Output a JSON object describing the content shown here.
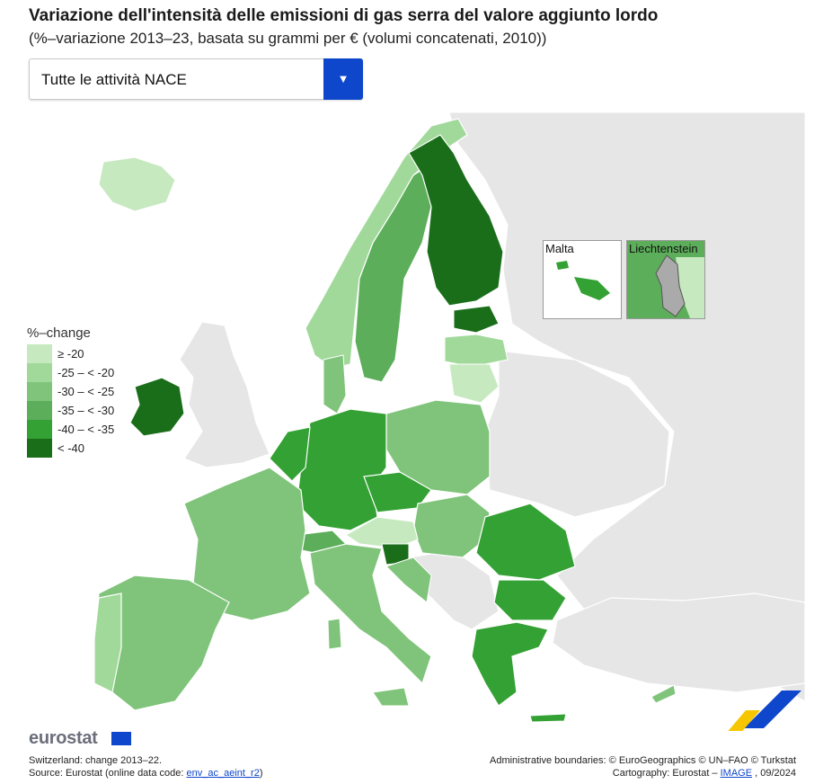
{
  "title": "Variazione dell'intensità delle emissioni di gas serra del valore aggiunto lordo",
  "subtitle": "(%–variazione 2013–23, basata su grammi per € (volumi concatenati, 2010))",
  "dropdown": {
    "value": "Tutte le attività NACE",
    "arrow": "▼"
  },
  "colors": {
    "c1": "#c7e9c0",
    "c2": "#a1d99b",
    "c3": "#7fc47a",
    "c4": "#5cae5a",
    "c5": "#33a133",
    "c6": "#1a6e1a",
    "nodata": "#e6e6e6",
    "sea": "#ffffff",
    "accent": "#0e47cb"
  },
  "legend": {
    "title": "%–change",
    "classes": [
      {
        "label": "≥ -20",
        "color": "#c7e9c0"
      },
      {
        "label": "-25 – < -20",
        "color": "#a1d99b"
      },
      {
        "label": "-30 – < -25",
        "color": "#7fc47a"
      },
      {
        "label": "-35 – < -30",
        "color": "#5cae5a"
      },
      {
        "label": "-40 – < -35",
        "color": "#33a133"
      },
      {
        "label": "< -40",
        "color": "#1a6e1a"
      }
    ]
  },
  "insets": {
    "malta": "Malta",
    "liechtenstein": "Liechtenstein"
  },
  "footer": {
    "note": "Switzerland: change 2013–22.",
    "source_prefix": "Source: Eurostat (online data code: ",
    "source_code": "env_ac_aeint_r2",
    "source_suffix": ")",
    "boundaries": "Administrative boundaries: © EuroGeographics © UN–FAO © Turkstat",
    "carto_prefix": "Cartography: Eurostat – ",
    "carto_link": "IMAGE",
    "carto_suffix": " , 09/2024",
    "logo": "eurostat"
  }
}
